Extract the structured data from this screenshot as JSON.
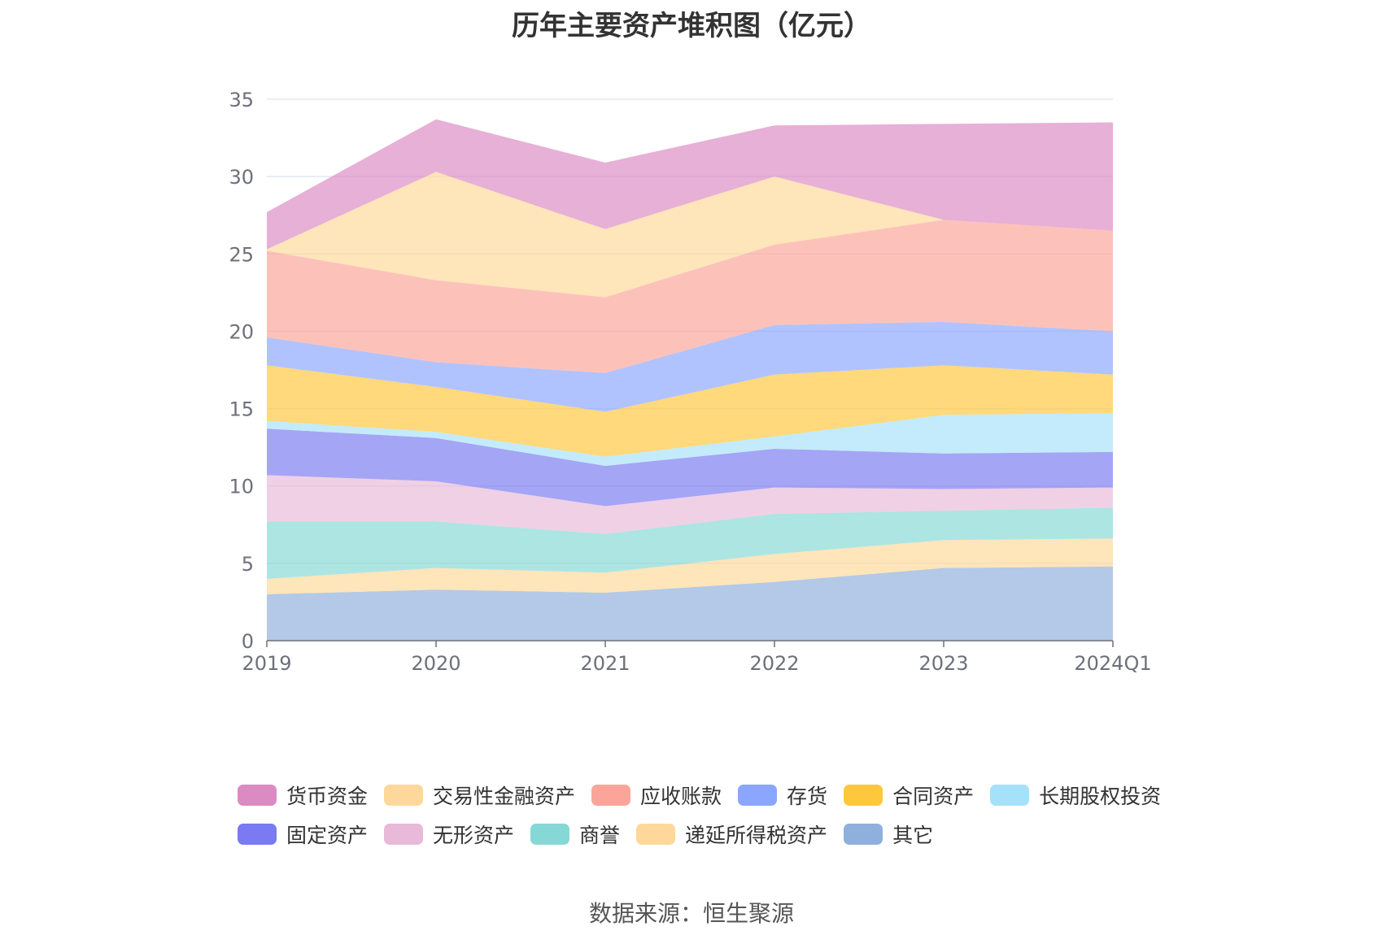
{
  "title": "历年主要资产堆积图（亿元）",
  "source": "数据来源：恒生聚源",
  "chart_data": {
    "type": "area",
    "stacked": true,
    "title": "历年主要资产堆积图（亿元）",
    "categories": [
      "2019",
      "2020",
      "2021",
      "2022",
      "2023",
      "2024Q1"
    ],
    "ylim": [
      0,
      35
    ],
    "yticks": [
      0,
      5,
      10,
      15,
      20,
      25,
      30,
      35
    ],
    "grid": true,
    "legend_position": "bottom",
    "series": [
      {
        "name": "其它",
        "color": "#8fb0dc",
        "values": [
          3.0,
          3.3,
          3.1,
          3.8,
          4.7,
          4.8
        ]
      },
      {
        "name": "递延所得税资产",
        "color": "#fdd89a",
        "values": [
          1.0,
          1.4,
          1.3,
          1.8,
          1.8,
          1.8
        ]
      },
      {
        "name": "商誉",
        "color": "#86d8d6",
        "values": [
          3.7,
          3.0,
          2.5,
          2.6,
          1.9,
          2.0
        ]
      },
      {
        "name": "无形资产",
        "color": "#e8b9d8",
        "values": [
          3.0,
          2.6,
          1.8,
          1.7,
          1.4,
          1.3
        ]
      },
      {
        "name": "固定资产",
        "color": "#7a7af2",
        "values": [
          3.0,
          2.8,
          2.6,
          2.5,
          2.3,
          2.3
        ]
      },
      {
        "name": "长期股权投资",
        "color": "#a6e1fa",
        "values": [
          0.5,
          0.4,
          0.6,
          0.8,
          2.5,
          2.5
        ]
      },
      {
        "name": "合同资产",
        "color": "#ffc73d",
        "values": [
          3.6,
          2.9,
          2.9,
          4.0,
          3.2,
          2.5
        ]
      },
      {
        "name": "存货",
        "color": "#8aa6ff",
        "values": [
          1.8,
          1.6,
          2.5,
          3.2,
          2.8,
          2.8
        ]
      },
      {
        "name": "应收账款",
        "color": "#fba59a",
        "values": [
          5.6,
          5.3,
          4.9,
          5.2,
          6.6,
          6.5
        ]
      },
      {
        "name": "交易性金融资产",
        "color": "#fdd89a",
        "values": [
          0.1,
          7.0,
          4.4,
          4.4,
          0.0,
          0.0
        ]
      },
      {
        "name": "货币资金",
        "color": "#dc8ac2",
        "values": [
          2.4,
          3.4,
          4.3,
          3.3,
          6.2,
          7.0
        ]
      }
    ]
  },
  "legend": [
    [
      "货币资金",
      "交易性金融资产",
      "应收账款",
      "存货",
      "合同资产",
      "长期股权投资"
    ],
    [
      "固定资产",
      "无形资产",
      "商誉",
      "递延所得税资产",
      "其它"
    ]
  ],
  "legend_colors": {
    "货币资金": "#dc8ac2",
    "交易性金融资产": "#fdd89a",
    "应收账款": "#fba59a",
    "存货": "#8aa6ff",
    "合同资产": "#ffc73d",
    "长期股权投资": "#a6e1fa",
    "固定资产": "#7a7af2",
    "无形资产": "#e8b9d8",
    "商誉": "#86d8d6",
    "递延所得税资产": "#fdd89a",
    "其它": "#8fb0dc"
  },
  "colors": {
    "grid": "#e3e6f3",
    "axis": "#6e7079",
    "tick_label": "#6e7079"
  }
}
